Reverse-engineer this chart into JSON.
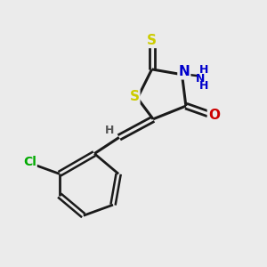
{
  "background_color": "#ebebeb",
  "atom_colors": {
    "S": "#cccc00",
    "N": "#0000cc",
    "O": "#cc0000",
    "Cl": "#00aa00",
    "C": "#1a1a1a",
    "H": "#555555"
  },
  "bond_color": "#1a1a1a",
  "figsize": [
    3.0,
    3.0
  ],
  "dpi": 100
}
